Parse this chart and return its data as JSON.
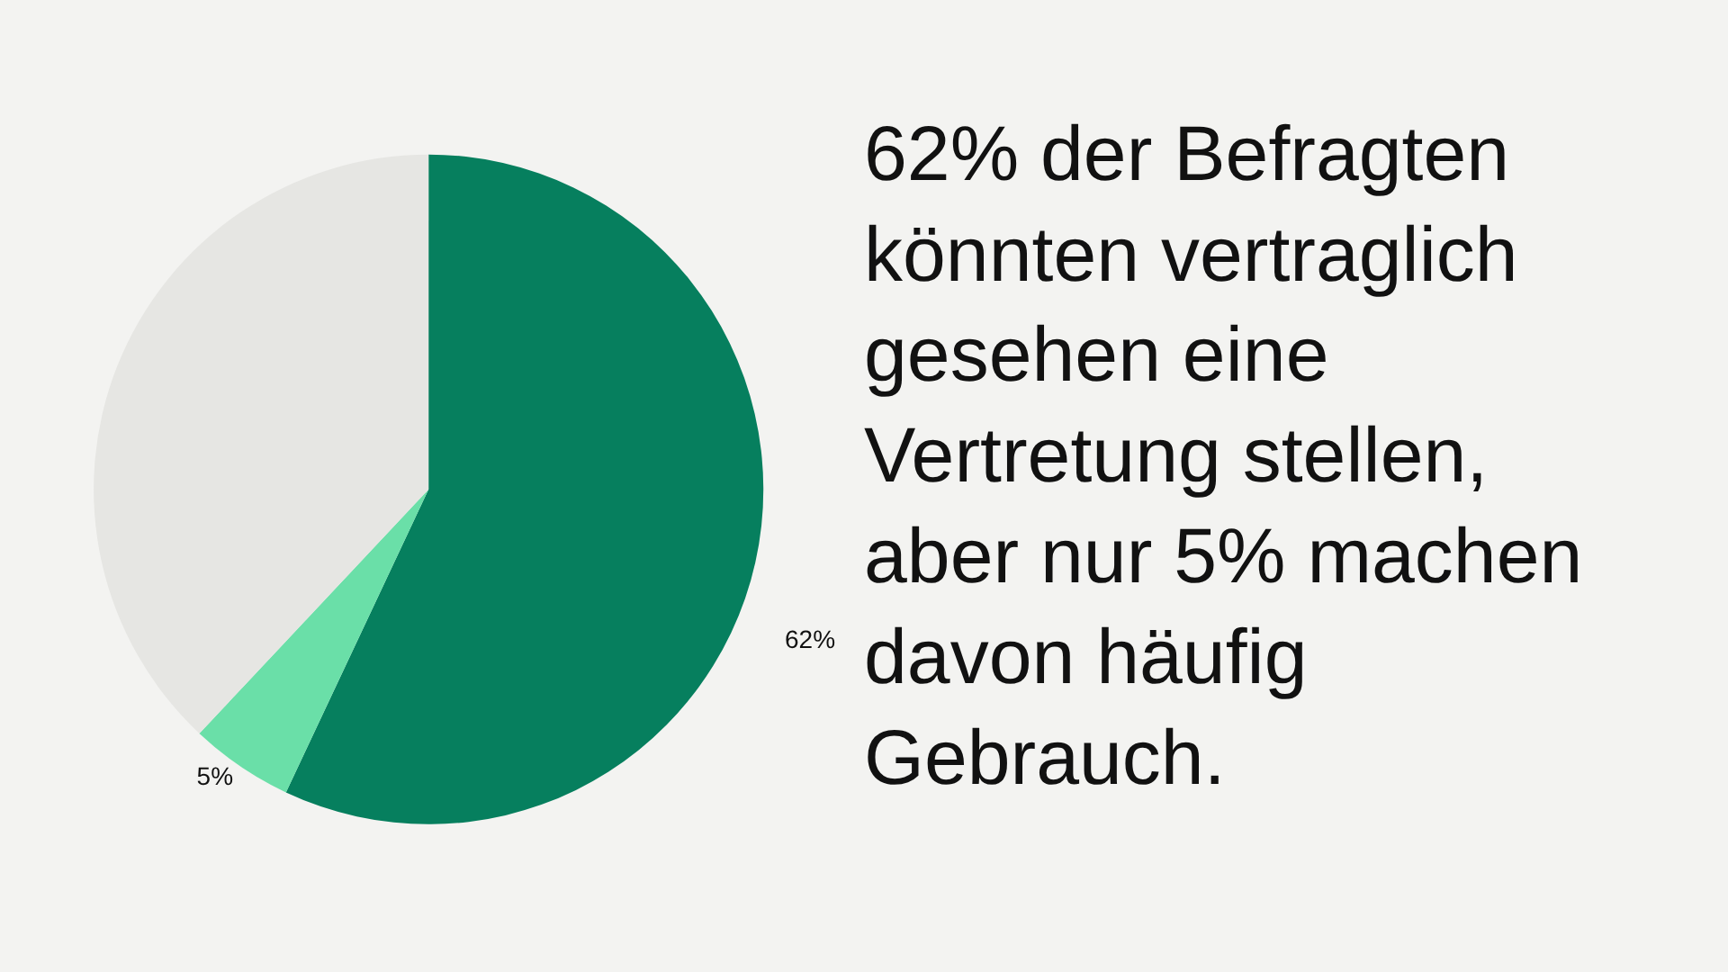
{
  "chart_data": {
    "type": "pie",
    "title": "62% der Befragten könnten vertraglich gesehen eine Vertretung stellen, aber nur 5% machen davon häufig Gebrauch.",
    "categories": [
      null,
      null,
      null
    ],
    "values": [
      57,
      5,
      38
    ],
    "colors": [
      "#067f5e",
      "#6adfa8",
      "#e6e6e3"
    ],
    "value_labels": [
      null,
      "5%",
      null
    ],
    "annotations": [
      "62%"
    ]
  }
}
